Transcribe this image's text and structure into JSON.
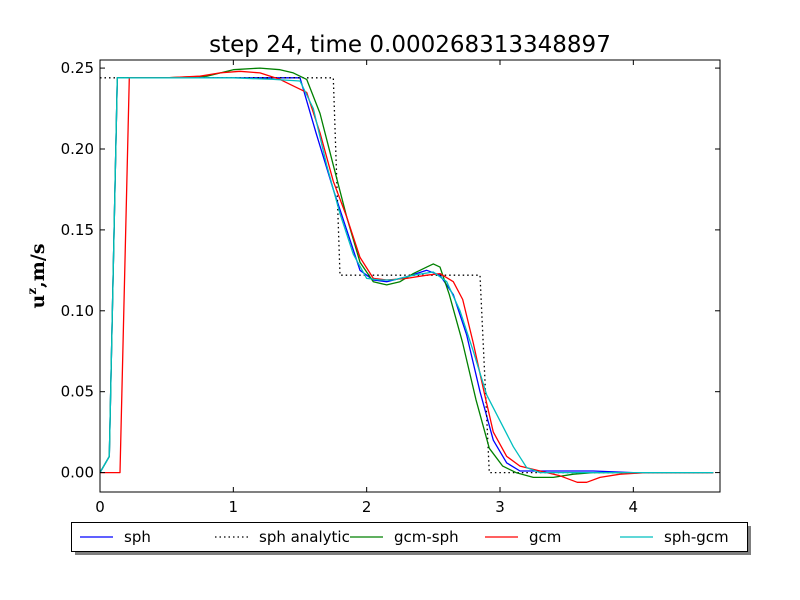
{
  "chart_data": {
    "type": "line",
    "title": "step 24, time 0.000268313348897",
    "xlabel": "",
    "ylabel": "u",
    "ylabel_superscript": "z",
    "ylabel_units": ",m/s",
    "xlim": [
      0,
      4.65
    ],
    "ylim": [
      -0.012,
      0.255
    ],
    "xticks": [
      0,
      1,
      2,
      3,
      4
    ],
    "xtick_labels": [
      "0",
      "1",
      "2",
      "3",
      "4"
    ],
    "yticks": [
      0.0,
      0.05,
      0.1,
      0.15,
      0.2,
      0.25
    ],
    "ytick_labels": [
      "0.00",
      "0.05",
      "0.10",
      "0.15",
      "0.20",
      "0.25"
    ],
    "grid": false,
    "legend_position": "bottom",
    "series": [
      {
        "name": "sph",
        "color": "#0000ff",
        "dash": "",
        "x": [
          0.0,
          0.07,
          0.13,
          0.18,
          0.25,
          0.5,
          1.0,
          1.3,
          1.5,
          1.62,
          1.75,
          1.85,
          1.95,
          2.05,
          2.15,
          2.3,
          2.45,
          2.55,
          2.65,
          2.75,
          2.85,
          2.95,
          3.05,
          3.15,
          3.3,
          3.5,
          3.7,
          4.0,
          4.3,
          4.6
        ],
        "y": [
          0.0,
          0.01,
          0.244,
          0.244,
          0.244,
          0.244,
          0.244,
          0.244,
          0.244,
          0.21,
          0.175,
          0.15,
          0.125,
          0.119,
          0.118,
          0.121,
          0.125,
          0.122,
          0.11,
          0.085,
          0.05,
          0.02,
          0.006,
          0.001,
          0.001,
          0.001,
          0.001,
          0.0,
          0.0,
          0.0
        ]
      },
      {
        "name": "sph analytic",
        "color": "#000000",
        "dash": "1.5,3",
        "x": [
          0.0,
          1.75,
          1.8,
          2.85,
          2.92,
          4.6
        ],
        "y": [
          0.244,
          0.244,
          0.122,
          0.122,
          0.0,
          0.0
        ]
      },
      {
        "name": "gcm-sph",
        "color": "#008000",
        "dash": "",
        "x": [
          0.0,
          0.07,
          0.13,
          0.2,
          0.5,
          0.8,
          1.0,
          1.2,
          1.35,
          1.45,
          1.55,
          1.65,
          1.75,
          1.85,
          1.95,
          2.05,
          2.15,
          2.25,
          2.35,
          2.45,
          2.5,
          2.55,
          2.62,
          2.72,
          2.82,
          2.92,
          3.02,
          3.12,
          3.25,
          3.4,
          3.55,
          3.7,
          3.9,
          4.1,
          4.6
        ],
        "y": [
          0.0,
          0.01,
          0.244,
          0.244,
          0.244,
          0.245,
          0.249,
          0.25,
          0.249,
          0.247,
          0.243,
          0.222,
          0.19,
          0.158,
          0.13,
          0.118,
          0.116,
          0.118,
          0.123,
          0.127,
          0.129,
          0.127,
          0.11,
          0.08,
          0.045,
          0.015,
          0.004,
          0.0,
          -0.003,
          -0.003,
          -0.001,
          0.0,
          0.0,
          0.0,
          0.0
        ]
      },
      {
        "name": "gcm",
        "color": "#ff0000",
        "dash": "",
        "x": [
          0.0,
          0.15,
          0.22,
          0.3,
          0.5,
          0.75,
          0.9,
          1.05,
          1.2,
          1.35,
          1.45,
          1.55,
          1.65,
          1.75,
          1.85,
          1.95,
          2.05,
          2.15,
          2.3,
          2.45,
          2.55,
          2.65,
          2.72,
          2.8,
          2.88,
          2.95,
          3.05,
          3.15,
          3.3,
          3.45,
          3.58,
          3.65,
          3.75,
          3.9,
          4.1,
          4.6
        ],
        "y": [
          0.0,
          0.0,
          0.244,
          0.244,
          0.244,
          0.245,
          0.247,
          0.248,
          0.247,
          0.243,
          0.239,
          0.235,
          0.21,
          0.18,
          0.158,
          0.133,
          0.12,
          0.119,
          0.12,
          0.122,
          0.123,
          0.118,
          0.107,
          0.08,
          0.05,
          0.025,
          0.01,
          0.004,
          0.001,
          -0.002,
          -0.006,
          -0.006,
          -0.003,
          -0.001,
          0.0,
          0.0
        ]
      },
      {
        "name": "sph-gcm",
        "color": "#00bfbf",
        "dash": "",
        "x": [
          0.0,
          0.07,
          0.13,
          0.2,
          0.5,
          1.0,
          1.3,
          1.5,
          1.6,
          1.7,
          1.8,
          1.9,
          2.0,
          2.1,
          2.2,
          2.35,
          2.5,
          2.6,
          2.7,
          2.8,
          2.9,
          3.0,
          3.1,
          3.2,
          3.3,
          3.5,
          3.7,
          4.0,
          4.3,
          4.6
        ],
        "y": [
          0.0,
          0.01,
          0.244,
          0.244,
          0.244,
          0.244,
          0.243,
          0.242,
          0.225,
          0.19,
          0.16,
          0.135,
          0.12,
          0.119,
          0.119,
          0.122,
          0.124,
          0.118,
          0.1,
          0.075,
          0.048,
          0.032,
          0.016,
          0.003,
          0.0,
          0.0,
          0.0,
          0.0,
          0.0,
          0.0
        ]
      }
    ]
  }
}
